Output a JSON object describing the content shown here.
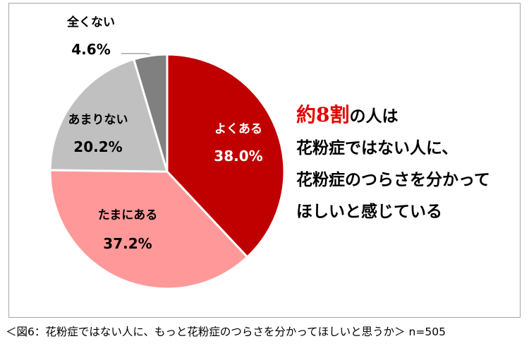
{
  "chart_data": {
    "type": "pie",
    "start_angle_deg": 0,
    "direction": "clockwise",
    "slices": [
      {
        "label": "よくある",
        "value": 38.0,
        "value_label": "38.0%",
        "color": "#c00000",
        "text_color": "#ffffff"
      },
      {
        "label": "たまにある",
        "value": 37.2,
        "value_label": "37.2%",
        "color": "#ff9999",
        "text_color": "#000000"
      },
      {
        "label": "あまりない",
        "value": 20.2,
        "value_label": "20.2%",
        "color": "#c0c0c0",
        "text_color": "#000000"
      },
      {
        "label": "全くない",
        "value": 4.6,
        "value_label": "4.6%",
        "color": "#808080",
        "text_color": "#000000"
      }
    ],
    "slice_border_color": "#ffffff",
    "leader_line_color": "#a6a6a6"
  },
  "callout": {
    "highlight_a": "約",
    "highlight_num": "8",
    "highlight_b": "割",
    "line1_rest": "の人は",
    "line2": "花粉症ではない人に、",
    "line3": "花粉症のつらさを分かって",
    "line4": "ほしいと感じている",
    "highlight_color": "#e20000"
  },
  "caption": {
    "text": "＜図6：花粉症ではない人に、もっと花粉症のつらさを分かってほしいと思うか＞ n=505"
  }
}
